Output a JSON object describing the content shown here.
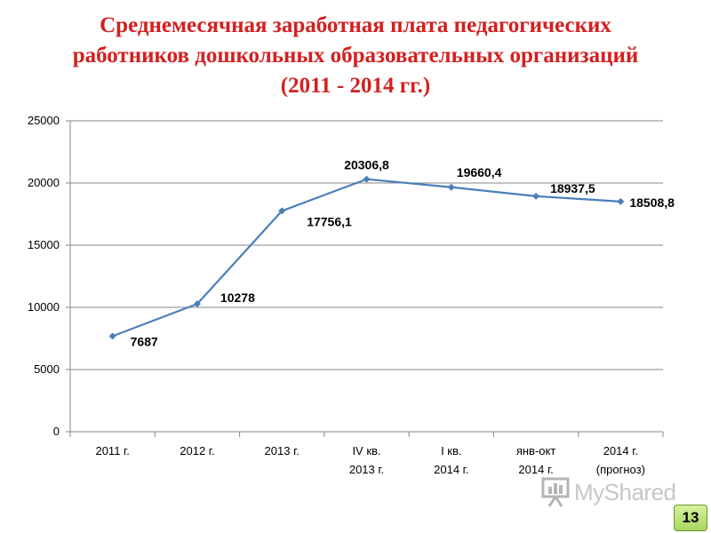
{
  "title_lines": [
    "Среднемесячная заработная плата педагогических",
    "работников дошкольных образовательных организаций",
    "(2011 - 2014 гг.)"
  ],
  "chart_data": {
    "type": "line",
    "title": "Среднемесячная заработная плата педагогических работников дошкольных образовательных организаций (2011 - 2014 гг.)",
    "categories": [
      [
        "2011 г."
      ],
      [
        "2012 г."
      ],
      [
        "2013 г."
      ],
      [
        "IV кв.",
        "2013 г."
      ],
      [
        "I кв.",
        "2014 г."
      ],
      [
        "янв-окт",
        "2014 г."
      ],
      [
        "2014 г.",
        "(прогноз)"
      ]
    ],
    "series": [
      {
        "values": [
          7687,
          10278,
          17756.1,
          20306.8,
          19660.4,
          18937.5,
          18508.8
        ],
        "labels": [
          "7687",
          "10278",
          "17756,1",
          "20306,8",
          "19660,4",
          "18937,5",
          "18508,8"
        ],
        "color": "#4a7ebb"
      }
    ],
    "ylim": [
      0,
      25000
    ],
    "yticks": [
      0,
      5000,
      10000,
      15000,
      20000,
      25000
    ],
    "grid": true,
    "legend": "none"
  },
  "watermark": {
    "text": "MyShared",
    "icon": "presentation-board-icon"
  },
  "page_number": "13"
}
